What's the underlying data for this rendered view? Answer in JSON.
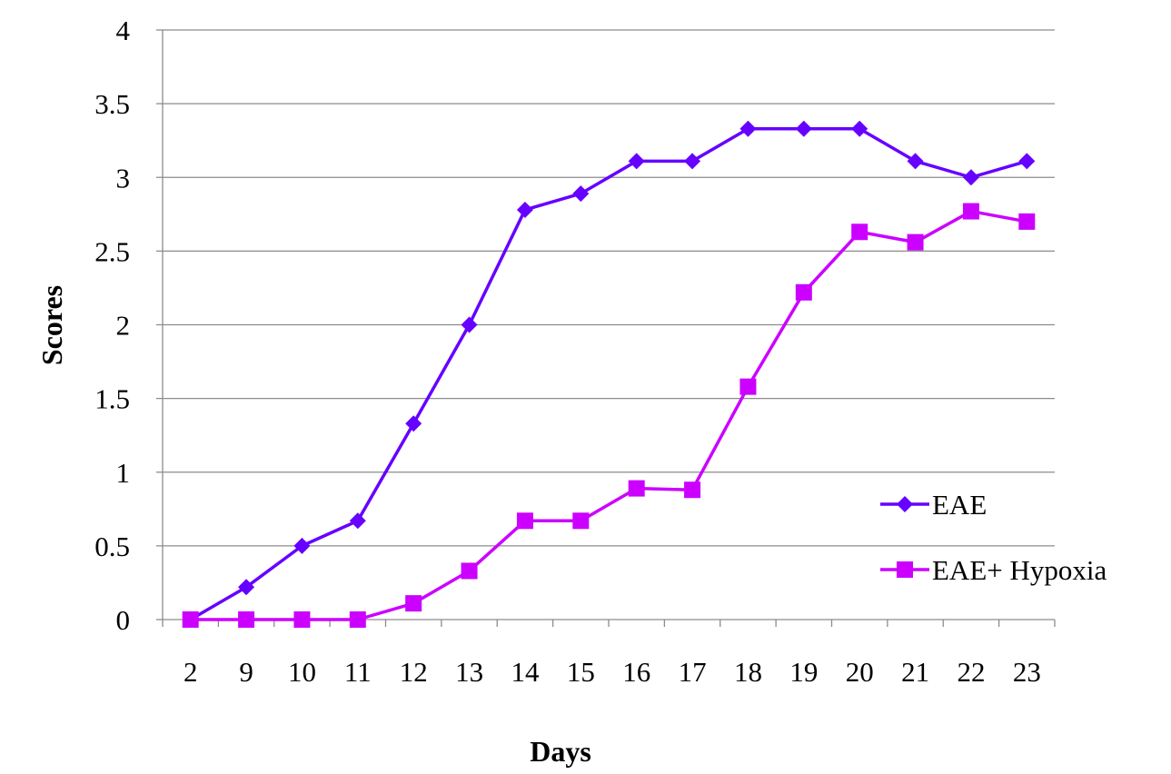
{
  "chart_data": {
    "type": "line",
    "title": "",
    "xlabel": "Days",
    "ylabel": "Scores",
    "categories": [
      "2",
      "9",
      "10",
      "11",
      "12",
      "13",
      "14",
      "15",
      "16",
      "17",
      "18",
      "19",
      "20",
      "21",
      "22",
      "23"
    ],
    "ylim": [
      0,
      4
    ],
    "yticks": [
      "0",
      "0.5",
      "1",
      "1.5",
      "2",
      "2.5",
      "3",
      "3.5",
      "4"
    ],
    "grid": "horizontal",
    "legend_position": "right",
    "series": [
      {
        "name": "EAE",
        "color": "#6600ff",
        "marker": "diamond",
        "values": [
          0,
          0.22,
          0.5,
          0.67,
          1.33,
          2.0,
          2.78,
          2.89,
          3.11,
          3.11,
          3.33,
          3.33,
          3.33,
          3.11,
          3.0,
          3.11
        ]
      },
      {
        "name": "EAE+ Hypoxia",
        "color": "#cc00ff",
        "marker": "square",
        "values": [
          0,
          0,
          0,
          0,
          0.11,
          0.33,
          0.67,
          0.67,
          0.89,
          0.88,
          1.58,
          2.22,
          2.63,
          2.56,
          2.77,
          2.7
        ]
      }
    ]
  }
}
